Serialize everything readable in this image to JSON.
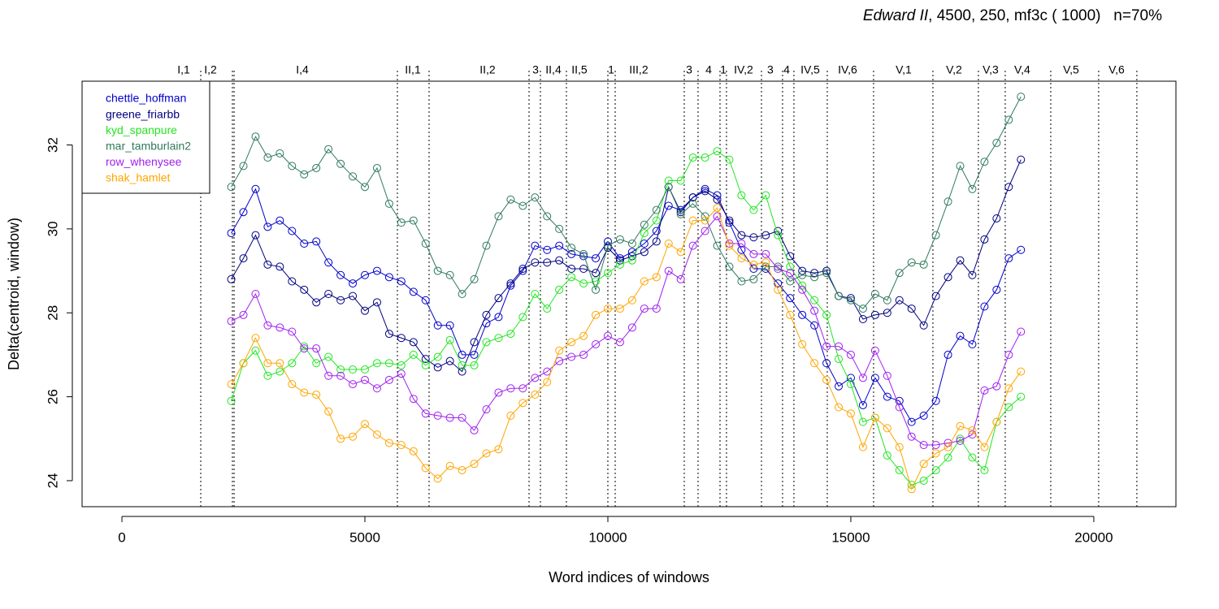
{
  "chart_data": {
    "type": "line",
    "title_italic": "Edward II",
    "title_rest": ", 4500, 250, mf3c ( 1000)   n=70%",
    "xlabel": "Word indices of windows",
    "ylabel": "Delta(centroid, window)",
    "xlim": [
      -820,
      21690
    ],
    "ylim": [
      23.38,
      33.52
    ],
    "xticks": [
      0,
      5000,
      10000,
      15000,
      20000
    ],
    "yticks": [
      24,
      26,
      28,
      30,
      32
    ],
    "legend": "top-left",
    "x": [
      2250,
      2500,
      2750,
      3000,
      3250,
      3500,
      3750,
      4000,
      4250,
      4500,
      4750,
      5000,
      5250,
      5500,
      5750,
      6000,
      6250,
      6500,
      6750,
      7000,
      7250,
      7500,
      7750,
      8000,
      8250,
      8500,
      8750,
      9000,
      9250,
      9500,
      9750,
      10000,
      10250,
      10500,
      10750,
      11000,
      11250,
      11500,
      11750,
      12000,
      12250,
      12500,
      12750,
      13000,
      13250,
      13500,
      13750,
      14000,
      14250,
      14500,
      14750,
      15000,
      15250,
      15500,
      15750,
      16000,
      16250,
      16500,
      16750,
      17000,
      17250,
      17500,
      17750,
      18000,
      18250,
      18500
    ],
    "series": [
      {
        "name": "chettle_hoffman",
        "color": "#0000cd",
        "values": [
          29.9,
          30.4,
          30.95,
          30.05,
          30.2,
          29.95,
          29.65,
          29.7,
          29.2,
          28.9,
          28.7,
          28.9,
          29.0,
          28.85,
          28.75,
          28.5,
          28.3,
          27.7,
          27.7,
          27.0,
          27.0,
          27.75,
          27.9,
          28.65,
          29.0,
          29.6,
          29.5,
          29.6,
          29.4,
          29.35,
          29.3,
          29.7,
          29.3,
          29.45,
          29.65,
          29.95,
          30.55,
          30.45,
          30.75,
          30.95,
          30.8,
          30.15,
          29.5,
          29.05,
          29.05,
          28.7,
          28.35,
          27.95,
          27.7,
          26.8,
          26.25,
          26.45,
          25.8,
          26.45,
          26.0,
          25.9,
          25.4,
          25.55,
          25.9,
          27.0,
          27.45,
          27.25,
          28.15,
          28.55,
          29.3,
          29.5
        ]
      },
      {
        "name": "greene_friarbb",
        "color": "#000080",
        "values": [
          28.8,
          29.3,
          29.85,
          29.15,
          29.1,
          28.75,
          28.55,
          28.25,
          28.45,
          28.3,
          28.4,
          28.05,
          28.25,
          27.5,
          27.4,
          27.3,
          26.9,
          26.7,
          26.85,
          26.6,
          27.3,
          27.95,
          28.35,
          28.7,
          29.05,
          29.2,
          29.2,
          29.25,
          29.05,
          29.05,
          28.95,
          29.55,
          29.25,
          29.35,
          29.45,
          29.7,
          31.0,
          30.4,
          30.75,
          30.9,
          30.7,
          30.2,
          29.85,
          29.8,
          29.85,
          29.95,
          29.35,
          29.0,
          28.95,
          29.0,
          28.4,
          28.35,
          27.85,
          27.95,
          28.0,
          28.3,
          28.1,
          27.7,
          28.4,
          28.85,
          29.25,
          28.9,
          29.75,
          30.25,
          31.0,
          31.65
        ]
      },
      {
        "name": "kyd_spanpure",
        "color": "#22e622",
        "values": [
          25.9,
          26.8,
          27.1,
          26.5,
          26.6,
          26.8,
          27.2,
          26.8,
          26.95,
          26.65,
          26.65,
          26.65,
          26.8,
          26.8,
          26.75,
          27.0,
          26.75,
          26.95,
          27.35,
          26.75,
          26.75,
          27.3,
          27.4,
          27.5,
          27.9,
          28.45,
          28.1,
          28.55,
          28.85,
          28.7,
          28.75,
          28.95,
          29.15,
          29.25,
          29.9,
          30.2,
          31.15,
          31.15,
          31.7,
          31.7,
          31.85,
          31.65,
          30.8,
          30.45,
          30.8,
          29.85,
          29.1,
          28.65,
          28.3,
          27.95,
          26.9,
          26.3,
          25.4,
          25.5,
          24.6,
          24.25,
          23.9,
          24.0,
          24.25,
          24.55,
          25.0,
          24.55,
          24.25,
          25.4,
          25.75,
          26.0
        ]
      },
      {
        "name": "mar_tamburlain2",
        "color": "#2f7a5c",
        "values": [
          31.0,
          31.5,
          32.2,
          31.7,
          31.8,
          31.5,
          31.3,
          31.45,
          31.9,
          31.55,
          31.25,
          31.0,
          31.45,
          30.6,
          30.15,
          30.2,
          29.65,
          29.0,
          28.9,
          28.45,
          28.8,
          29.6,
          30.3,
          30.7,
          30.55,
          30.75,
          30.3,
          30.0,
          29.55,
          29.4,
          28.55,
          29.6,
          29.75,
          29.65,
          30.1,
          30.45,
          31.0,
          30.35,
          30.6,
          30.3,
          29.6,
          29.1,
          28.75,
          28.8,
          29.1,
          29.1,
          28.75,
          28.9,
          28.85,
          28.95,
          28.4,
          28.3,
          28.1,
          28.45,
          28.3,
          28.95,
          29.2,
          29.15,
          29.85,
          30.65,
          31.5,
          30.95,
          31.6,
          32.05,
          32.6,
          33.15
        ]
      },
      {
        "name": "row_whenysee",
        "color": "#a020f0",
        "values": [
          27.8,
          27.95,
          28.45,
          27.7,
          27.65,
          27.55,
          27.15,
          27.15,
          26.5,
          26.5,
          26.3,
          26.4,
          26.2,
          26.4,
          26.55,
          25.95,
          25.6,
          25.55,
          25.5,
          25.5,
          25.2,
          25.7,
          26.1,
          26.2,
          26.2,
          26.45,
          26.6,
          26.85,
          26.95,
          27.0,
          27.25,
          27.45,
          27.3,
          27.65,
          28.1,
          28.1,
          29.0,
          28.8,
          29.6,
          29.95,
          30.3,
          29.65,
          29.65,
          29.4,
          29.4,
          29.05,
          28.95,
          28.55,
          28.05,
          27.2,
          27.2,
          27.0,
          26.45,
          27.1,
          26.5,
          25.75,
          25.05,
          24.85,
          24.85,
          24.9,
          24.95,
          25.1,
          26.15,
          26.25,
          27.0,
          27.55
        ]
      },
      {
        "name": "shak_hamlet",
        "color": "#ffa500",
        "values": [
          26.3,
          26.8,
          27.4,
          26.8,
          26.8,
          26.3,
          26.1,
          26.05,
          25.65,
          25.0,
          25.05,
          25.35,
          25.1,
          24.9,
          24.85,
          24.7,
          24.3,
          24.05,
          24.35,
          24.25,
          24.4,
          24.65,
          24.75,
          25.55,
          25.85,
          26.05,
          26.35,
          27.1,
          27.3,
          27.45,
          27.95,
          28.1,
          28.1,
          28.3,
          28.75,
          28.85,
          29.65,
          29.45,
          30.2,
          30.2,
          30.5,
          29.6,
          29.3,
          29.15,
          29.2,
          28.55,
          27.95,
          27.25,
          26.8,
          26.4,
          25.75,
          25.6,
          24.8,
          25.5,
          25.25,
          24.8,
          23.8,
          24.4,
          24.65,
          24.8,
          25.3,
          25.2,
          24.8,
          25.4,
          26.2,
          26.6
        ]
      }
    ],
    "scene_boundaries": [
      1622,
      2274,
      2308,
      5669,
      6321,
      8378,
      8612,
      9147,
      10000,
      10151,
      11572,
      11856,
      12308,
      12441,
      13161,
      13595,
      13829,
      14515,
      15468,
      16689,
      17625,
      18177,
      19114,
      20100,
      20886
    ],
    "scene_labels": [
      {
        "label": "I,1",
        "x": 1271
      },
      {
        "label": "I,2",
        "x": 1823
      },
      {
        "label": "I,4",
        "x": 3712
      },
      {
        "label": "II,1",
        "x": 5987
      },
      {
        "label": "II,2",
        "x": 7525
      },
      {
        "label": "3",
        "x": 8512
      },
      {
        "label": "II,4",
        "x": 8880
      },
      {
        "label": "II,5",
        "x": 9415
      },
      {
        "label": "1",
        "x": 10067
      },
      {
        "label": "III,2",
        "x": 10635
      },
      {
        "label": "3",
        "x": 11672
      },
      {
        "label": "4",
        "x": 12074
      },
      {
        "label": "1",
        "x": 12375
      },
      {
        "label": "IV,2",
        "x": 12793
      },
      {
        "label": "3",
        "x": 13344
      },
      {
        "label": "4",
        "x": 13679
      },
      {
        "label": "IV,5",
        "x": 14164
      },
      {
        "label": "IV,6",
        "x": 14933
      },
      {
        "label": "V,1",
        "x": 16087
      },
      {
        "label": "V,2",
        "x": 17124
      },
      {
        "label": "V,3",
        "x": 17876
      },
      {
        "label": "V,4",
        "x": 18528
      },
      {
        "label": "V,5",
        "x": 19532
      },
      {
        "label": "V,6",
        "x": 20468
      }
    ]
  }
}
